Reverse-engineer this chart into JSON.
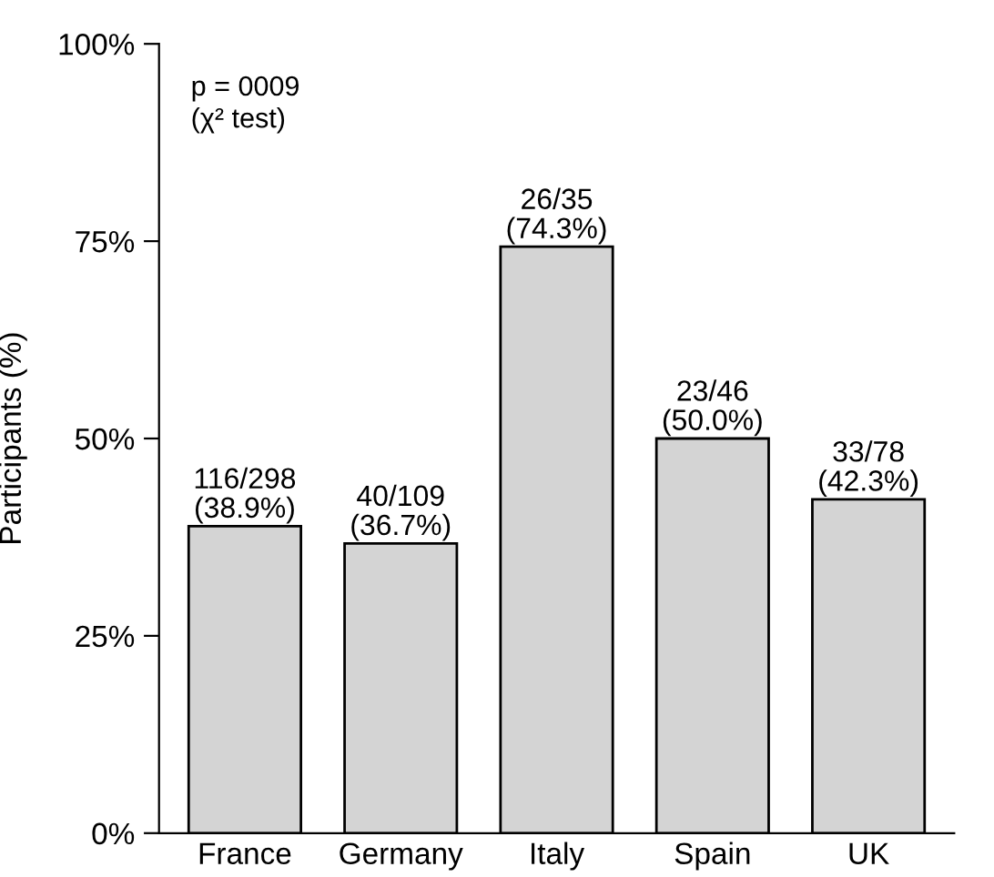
{
  "chart_data": {
    "type": "bar",
    "ylabel": "Participants (%)",
    "categories": [
      "France",
      "Germany",
      "Italy",
      "Spain",
      "UK"
    ],
    "values": [
      38.9,
      36.7,
      74.3,
      50.0,
      42.3
    ],
    "value_labels": [
      "116/298\n(38.9%)",
      "40/109\n(36.7%)",
      "26/35\n(74.3%)",
      "23/46\n(50.0%)",
      "33/78\n(42.3%)"
    ],
    "color": "#d4d4d4",
    "ylim": [
      0,
      100
    ],
    "yticks": [
      {
        "value": 0,
        "label": "0%"
      },
      {
        "value": 25,
        "label": "25%"
      },
      {
        "value": 50,
        "label": "50%"
      },
      {
        "value": 75,
        "label": "75%"
      },
      {
        "value": 100,
        "label": "100%"
      }
    ],
    "annotations": [
      "p = 0009\n(χ² test)"
    ],
    "grid": false,
    "legend": false
  }
}
